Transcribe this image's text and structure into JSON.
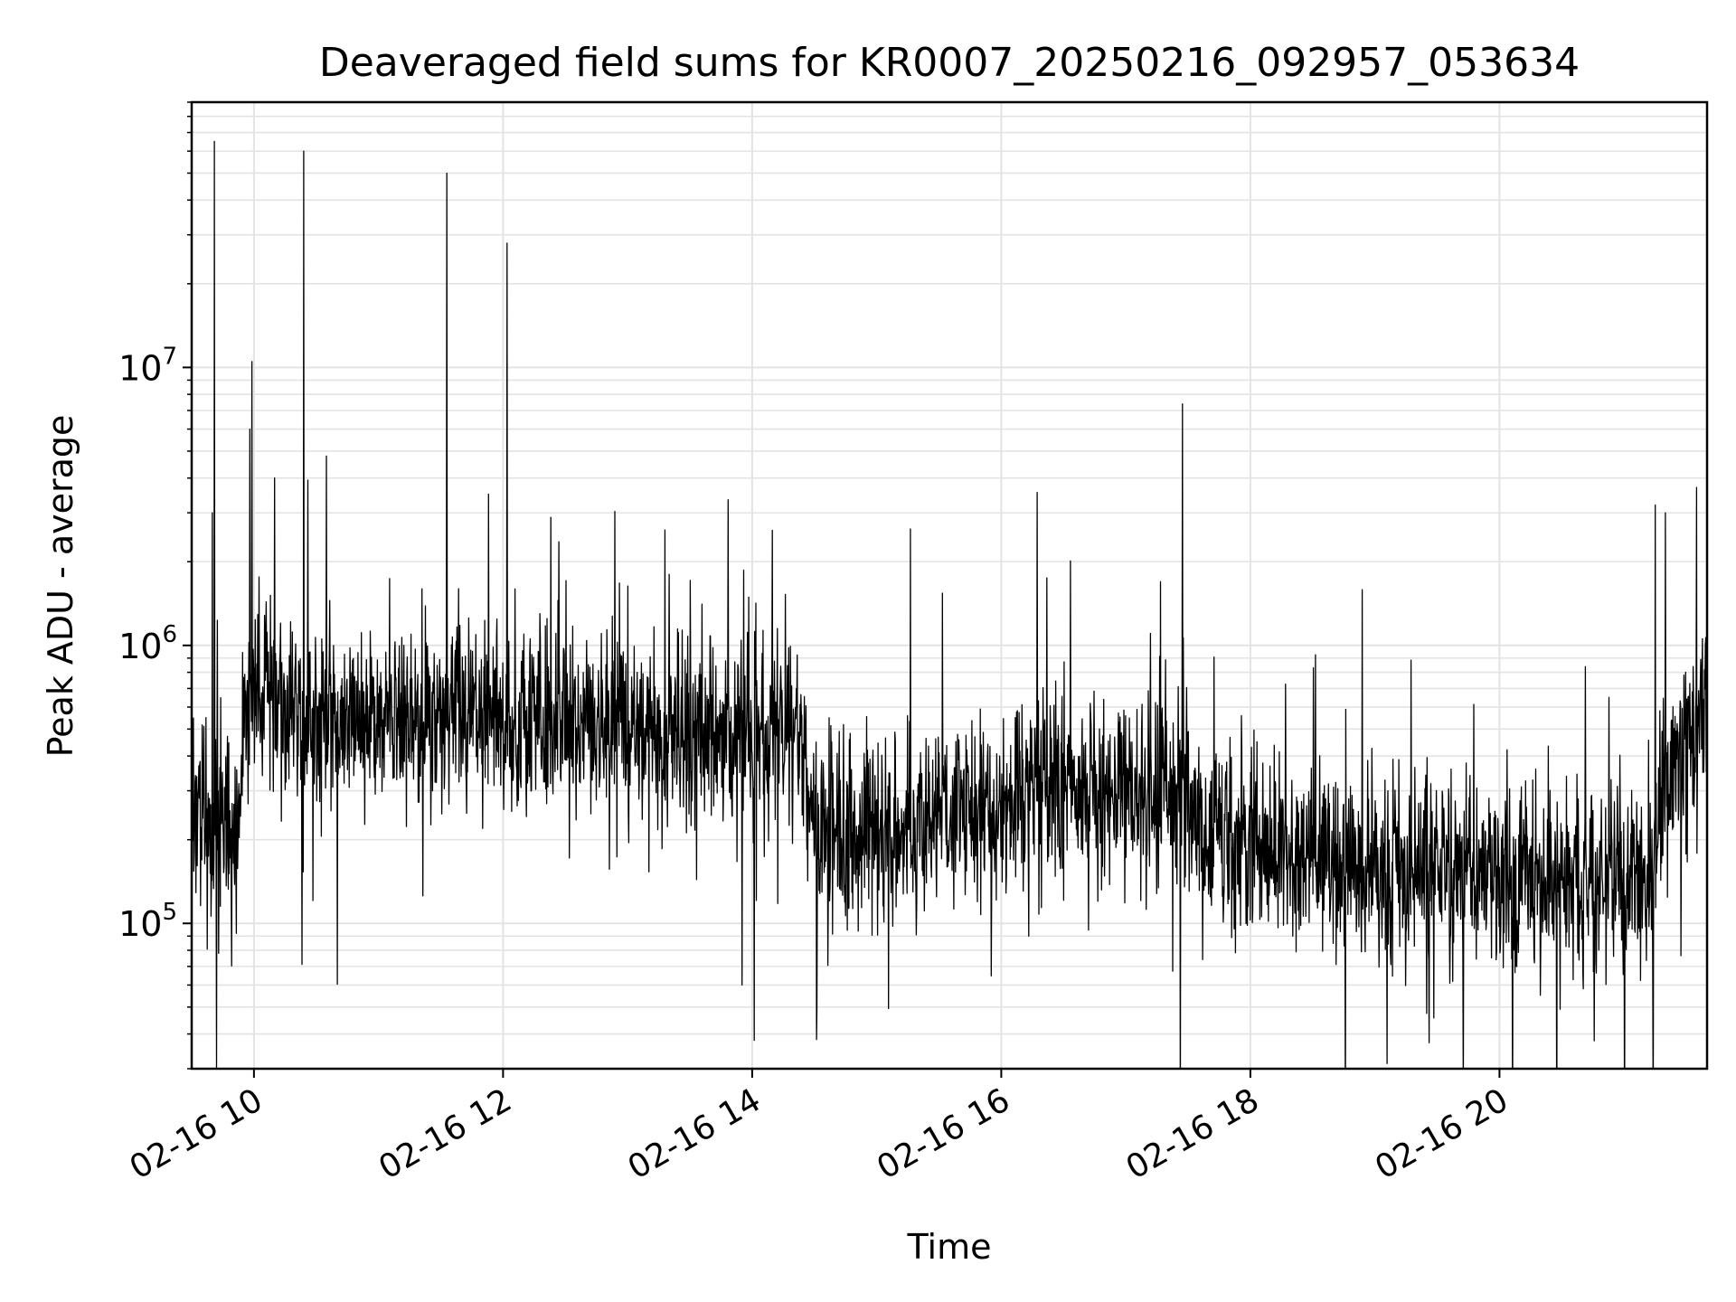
{
  "chart_data": {
    "type": "line",
    "title": "Deaveraged field sums for KR0007_20250216_092957_053634",
    "xlabel": "Time",
    "ylabel": "Peak ADU - average",
    "yscale": "log",
    "xlim": [
      "2025-02-16T09:30",
      "2025-02-16T21:40"
    ],
    "ylim": [
      30000,
      90000000
    ],
    "grid": true,
    "line_color": "#000000",
    "x_ticks": [
      {
        "value": "2025-02-16T10:00",
        "label": "02-16 10"
      },
      {
        "value": "2025-02-16T12:00",
        "label": "02-16 12"
      },
      {
        "value": "2025-02-16T14:00",
        "label": "02-16 14"
      },
      {
        "value": "2025-02-16T16:00",
        "label": "02-16 16"
      },
      {
        "value": "2025-02-16T18:00",
        "label": "02-16 18"
      },
      {
        "value": "2025-02-16T20:00",
        "label": "02-16 20"
      }
    ],
    "y_ticks": [
      {
        "value": 100000,
        "base": "10",
        "exp": "5"
      },
      {
        "value": 1000000,
        "base": "10",
        "exp": "6"
      },
      {
        "value": 10000000,
        "base": "10",
        "exp": "7"
      }
    ],
    "series": [
      {
        "baseline": [
          [
            "2025-02-16T09:30",
            300000
          ],
          [
            "2025-02-16T09:40",
            220000
          ],
          [
            "2025-02-16T09:52",
            200000
          ],
          [
            "2025-02-16T09:55",
            600000
          ],
          [
            "2025-02-16T10:30",
            550000
          ],
          [
            "2025-02-16T11:30",
            550000
          ],
          [
            "2025-02-16T12:30",
            540000
          ],
          [
            "2025-02-16T13:30",
            470000
          ],
          [
            "2025-02-16T14:25",
            480000
          ],
          [
            "2025-02-16T14:28",
            220000
          ],
          [
            "2025-02-16T15:00",
            210000
          ],
          [
            "2025-02-16T15:45",
            260000
          ],
          [
            "2025-02-16T16:30",
            330000
          ],
          [
            "2025-02-16T17:30",
            290000
          ],
          [
            "2025-02-16T17:40",
            200000
          ],
          [
            "2025-02-16T18:30",
            180000
          ],
          [
            "2025-02-16T19:30",
            150000
          ],
          [
            "2025-02-16T20:30",
            140000
          ],
          [
            "2025-02-16T21:15",
            140000
          ],
          [
            "2025-02-16T21:20",
            350000
          ],
          [
            "2025-02-16T21:40",
            600000
          ]
        ],
        "spikes": [
          [
            "2025-02-16T09:41",
            65000000
          ],
          [
            "2025-02-16T09:40",
            3000000
          ],
          [
            "2025-02-16T09:59",
            10500000
          ],
          [
            "2025-02-16T09:58",
            6000000
          ],
          [
            "2025-02-16T10:10",
            4000000
          ],
          [
            "2025-02-16T10:24",
            60000000
          ],
          [
            "2025-02-16T10:35",
            4800000
          ],
          [
            "2025-02-16T11:33",
            50000000
          ],
          [
            "2025-02-16T11:53",
            3500000
          ],
          [
            "2025-02-16T12:02",
            28000000
          ],
          [
            "2025-02-16T13:18",
            2600000
          ],
          [
            "2025-02-16T13:20",
            1800000
          ],
          [
            "2025-02-16T16:22",
            1750000
          ],
          [
            "2025-02-16T21:15",
            3200000
          ],
          [
            "2025-02-16T21:20",
            3000000
          ],
          [
            "2025-02-16T21:35",
            3700000
          ]
        ]
      }
    ]
  }
}
